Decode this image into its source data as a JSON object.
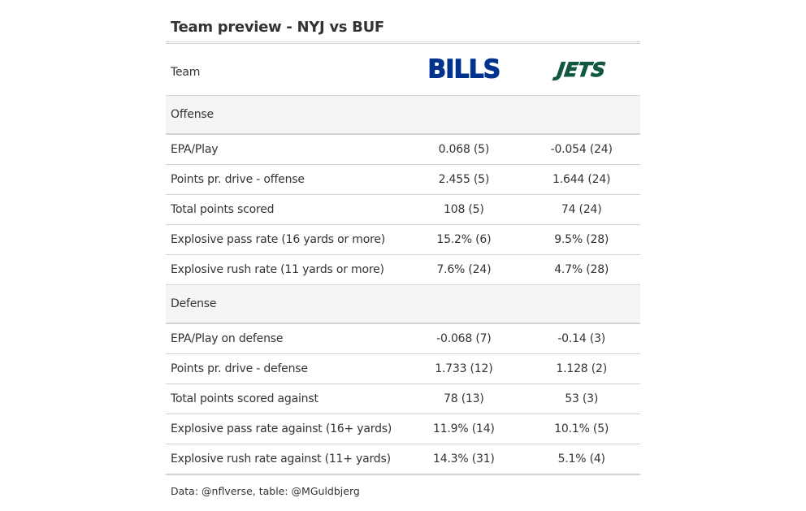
{
  "title": "Team preview - NYJ vs BUF",
  "header": {
    "label": "Team",
    "team1_logo": "BILLS",
    "team2_logo": "JETS"
  },
  "colors": {
    "bills": "#00338D",
    "jets": "#125740",
    "group_bg": "#f5f5f5",
    "rule": "#d3d3d3"
  },
  "chart_data": {
    "type": "table",
    "columns": [
      "Team",
      "BILLS",
      "JETS"
    ],
    "groups": [
      {
        "name": "Offense",
        "rows": [
          {
            "label": "EPA/Play",
            "bills": "0.068 (5)",
            "jets": "-0.054 (24)"
          },
          {
            "label": "Points pr. drive - offense",
            "bills": "2.455 (5)",
            "jets": "1.644 (24)"
          },
          {
            "label": "Total points scored",
            "bills": "108 (5)",
            "jets": "74 (24)"
          },
          {
            "label": "Explosive pass rate (16 yards or more)",
            "bills": "15.2% (6)",
            "jets": "9.5% (28)"
          },
          {
            "label": "Explosive rush rate (11 yards or more)",
            "bills": "7.6% (24)",
            "jets": "4.7% (28)"
          }
        ]
      },
      {
        "name": "Defense",
        "rows": [
          {
            "label": "EPA/Play on defense",
            "bills": "-0.068 (7)",
            "jets": "-0.14 (3)"
          },
          {
            "label": "Points pr. drive - defense",
            "bills": "1.733 (12)",
            "jets": "1.128 (2)"
          },
          {
            "label": "Total points scored against",
            "bills": "78 (13)",
            "jets": "53 (3)"
          },
          {
            "label": "Explosive pass rate against (16+ yards)",
            "bills": "11.9% (14)",
            "jets": "10.1% (5)"
          },
          {
            "label": "Explosive rush rate against (11+ yards)",
            "bills": "14.3% (31)",
            "jets": "5.1% (4)"
          }
        ]
      }
    ]
  },
  "source": "Data: @nflverse, table: @MGuldbjerg"
}
